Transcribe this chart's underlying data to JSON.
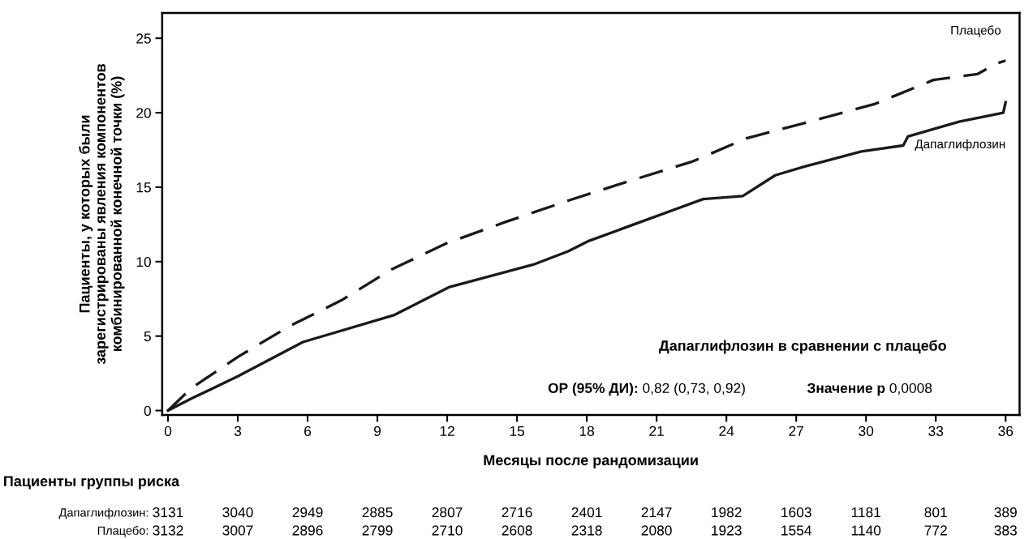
{
  "chart_data": {
    "type": "line",
    "xlabel": "Месяцы после рандомизации",
    "ylabel": "Пациенты, у которых были\nзарегистрированы явления компонентов\nкомбинированной конечной точки (%)",
    "xlim": [
      -0.25,
      36.6
    ],
    "ylim": [
      -0.3,
      26.7
    ],
    "xticks": [
      0,
      3,
      6,
      9,
      12,
      15,
      18,
      21,
      24,
      27,
      30,
      33,
      36
    ],
    "yticks": [
      0,
      5,
      10,
      15,
      20,
      25
    ],
    "grid": false,
    "legend": false,
    "marker": "none",
    "series": [
      {
        "name": "Плацебо",
        "color": "#1a1a1a",
        "line_style": "dashed",
        "x": [
          0,
          1,
          3,
          5.2,
          7.45,
          9.6,
          12.0,
          14.5,
          17.2,
          19.8,
          22.5,
          24.9,
          27.7,
          30.4,
          32.9,
          34.8,
          35.6,
          36.0
        ],
        "values": [
          0,
          1.5,
          3.6,
          5.65,
          7.4,
          9.47,
          11.25,
          12.66,
          14.1,
          15.4,
          16.7,
          18.3,
          19.45,
          20.6,
          22.2,
          22.6,
          23.3,
          23.5
        ]
      },
      {
        "name": "Дапаглифлозин",
        "color": "#1a1a1a",
        "line_style": "solid",
        "x": [
          0,
          1,
          3,
          5.8,
          9.7,
          12.1,
          15.7,
          17.2,
          18.1,
          23.0,
          24.7,
          26.1,
          27.4,
          29.8,
          31.6,
          31.8,
          34.0,
          35.9,
          36.0
        ],
        "values": [
          0,
          0.8,
          2.3,
          4.6,
          6.4,
          8.3,
          9.8,
          10.7,
          11.4,
          14.2,
          14.4,
          15.8,
          16.4,
          17.4,
          17.8,
          18.4,
          19.4,
          20.0,
          20.7
        ]
      }
    ],
    "annotations": [
      "Дапаглифлозин в сравнении с плацебо",
      "ОР (95% ДИ):",
      "0,82 (0,73, 0,92)",
      "Значение р",
      "0,0008",
      "Пациенты группы риска",
      "Дапаглифлозин:",
      "3131",
      "3040",
      "2949",
      "2885",
      "2807",
      "2716",
      "2401",
      "2147",
      "1982",
      "1603",
      "1181",
      "801",
      "389",
      "Плацебо:",
      "3132",
      "3007",
      "2896",
      "2799",
      "2710",
      "2608",
      "2318",
      "2080",
      "1923",
      "1554",
      "1140",
      "772",
      "383"
    ]
  }
}
